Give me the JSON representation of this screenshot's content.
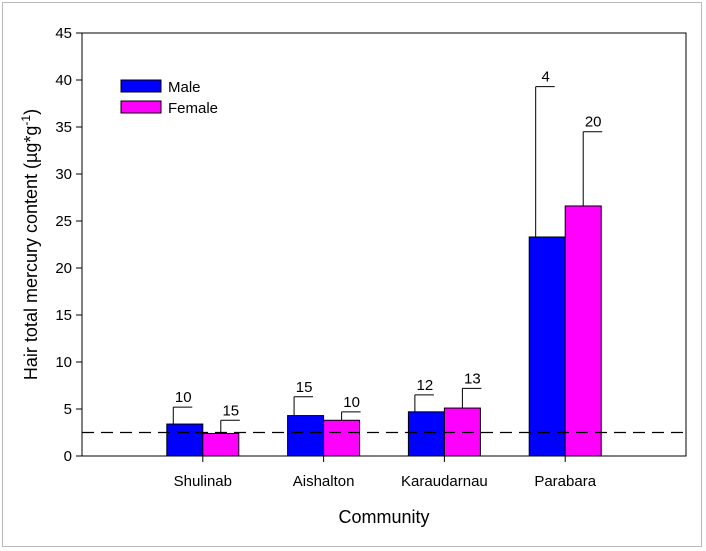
{
  "chart_data": {
    "type": "bar",
    "xlabel": "Community",
    "ylabel": "Hair total mercury content (µg*g",
    "ylabel_superscript": "-1",
    "ylabel_close": ")",
    "ylim": [
      0,
      45
    ],
    "yticks": [
      0,
      5,
      10,
      15,
      20,
      25,
      30,
      35,
      40,
      45
    ],
    "categories": [
      "Shulinab",
      "Aishalton",
      "Karaudarnau",
      "Parabara"
    ],
    "series": [
      {
        "name": "Male",
        "color": "#0000ff",
        "values": [
          3.4,
          4.3,
          4.7,
          23.3
        ],
        "error": [
          1.8,
          2.0,
          1.8,
          16.0
        ],
        "n": [
          "10",
          "15",
          "12",
          "4"
        ]
      },
      {
        "name": "Female",
        "color": "#ff00ff",
        "values": [
          2.4,
          3.8,
          5.1,
          26.6
        ],
        "error": [
          1.4,
          0.9,
          2.1,
          7.9
        ],
        "n": [
          "15",
          "10",
          "13",
          "20"
        ]
      }
    ],
    "reference_line": {
      "y": 2.5,
      "style": "dashed"
    },
    "legend": {
      "position": "top-left"
    },
    "grid": false
  }
}
